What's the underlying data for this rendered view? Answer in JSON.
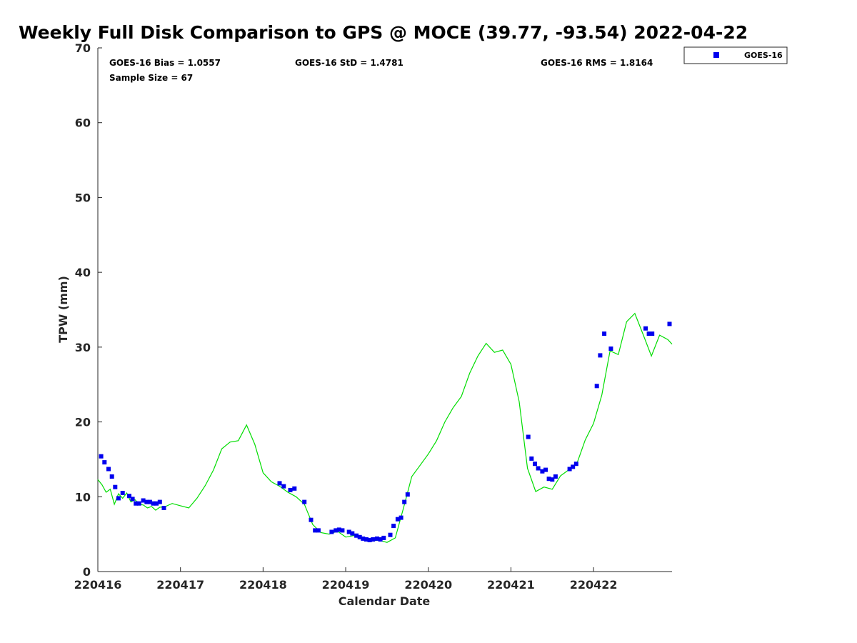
{
  "chart_data": {
    "type": "scatter",
    "title": "Weekly Full Disk Comparison to GPS @ MOCE (39.77, -93.54) 2022-04-22",
    "xlabel": "Calendar Date",
    "ylabel": "TPW (mm)",
    "xlim": [
      0,
      6.95
    ],
    "ylim": [
      0,
      70
    ],
    "x_ticks": [
      0,
      1,
      2,
      3,
      4,
      5,
      6
    ],
    "x_tick_labels": [
      "220416",
      "220417",
      "220418",
      "220419",
      "220420",
      "220421",
      "220422"
    ],
    "y_ticks": [
      0,
      10,
      20,
      30,
      40,
      50,
      60,
      70
    ],
    "y_tick_labels": [
      "0",
      "10",
      "20",
      "30",
      "40",
      "50",
      "60",
      "70"
    ],
    "stats": {
      "bias": "GOES-16 Bias = 1.0557",
      "std": "GOES-16 StD = 1.4781",
      "rms": "GOES-16 RMS = 1.8164",
      "sample_size": "Sample Size = 67"
    },
    "legend": {
      "label": "GOES-16",
      "position": "top-right outside"
    },
    "colors": {
      "goes": "#0000ee",
      "gps": "#00dd00"
    },
    "series": [
      {
        "name": "GOES-16",
        "style": "square-markers",
        "x": [
          0.04,
          0.08,
          0.13,
          0.17,
          0.21,
          0.25,
          0.3,
          0.38,
          0.42,
          0.46,
          0.5,
          0.55,
          0.59,
          0.63,
          0.67,
          0.71,
          0.75,
          0.8,
          2.2,
          2.25,
          2.33,
          2.38,
          2.5,
          2.58,
          2.63,
          2.67,
          2.83,
          2.88,
          2.92,
          2.96,
          3.04,
          3.08,
          3.13,
          3.17,
          3.21,
          3.25,
          3.29,
          3.33,
          3.38,
          3.42,
          3.46,
          3.54,
          3.58,
          3.63,
          3.67,
          3.71,
          3.75,
          5.21,
          5.25,
          5.29,
          5.33,
          5.38,
          5.42,
          5.46,
          5.5,
          5.54,
          5.71,
          5.75,
          5.79,
          6.04,
          6.08,
          6.13,
          6.21,
          6.63,
          6.67,
          6.71,
          6.92
        ],
        "y": [
          15.4,
          14.6,
          13.7,
          12.7,
          11.3,
          9.8,
          10.5,
          10.1,
          9.7,
          9.1,
          9.1,
          9.5,
          9.3,
          9.3,
          9.1,
          9.1,
          9.3,
          8.5,
          11.8,
          11.4,
          10.9,
          11.1,
          9.3,
          6.9,
          5.5,
          5.5,
          5.3,
          5.5,
          5.6,
          5.5,
          5.3,
          5.1,
          4.8,
          4.6,
          4.4,
          4.3,
          4.2,
          4.3,
          4.4,
          4.3,
          4.5,
          4.9,
          6.1,
          7.0,
          7.2,
          9.3,
          10.3,
          18.0,
          15.1,
          14.4,
          13.8,
          13.4,
          13.6,
          12.4,
          12.3,
          12.7,
          13.7,
          14.0,
          14.4,
          24.8,
          28.9,
          31.8,
          29.8,
          32.5,
          31.8,
          31.8,
          33.1
        ]
      },
      {
        "name": "GPS",
        "style": "line",
        "x": [
          0.0,
          0.05,
          0.1,
          0.15,
          0.2,
          0.25,
          0.3,
          0.35,
          0.4,
          0.45,
          0.5,
          0.55,
          0.6,
          0.65,
          0.7,
          0.75,
          0.8,
          0.9,
          1.0,
          1.1,
          1.2,
          1.3,
          1.4,
          1.5,
          1.6,
          1.7,
          1.8,
          1.9,
          2.0,
          2.1,
          2.2,
          2.3,
          2.4,
          2.5,
          2.6,
          2.7,
          2.8,
          2.9,
          3.0,
          3.1,
          3.2,
          3.3,
          3.4,
          3.5,
          3.6,
          3.7,
          3.8,
          3.9,
          4.0,
          4.1,
          4.2,
          4.3,
          4.4,
          4.5,
          4.6,
          4.7,
          4.8,
          4.9,
          5.0,
          5.1,
          5.2,
          5.3,
          5.4,
          5.5,
          5.6,
          5.7,
          5.8,
          5.9,
          6.0,
          6.1,
          6.2,
          6.3,
          6.4,
          6.5,
          6.6,
          6.7,
          6.8,
          6.9,
          6.95
        ],
        "y": [
          12.3,
          11.6,
          10.6,
          11.0,
          9.0,
          10.4,
          9.8,
          10.5,
          9.3,
          9.6,
          9.0,
          8.9,
          8.5,
          8.7,
          8.2,
          8.6,
          8.6,
          9.1,
          8.8,
          8.5,
          9.8,
          11.5,
          13.6,
          16.4,
          17.3,
          17.5,
          19.6,
          17.0,
          13.2,
          12.0,
          11.4,
          10.6,
          10.0,
          9.0,
          6.3,
          5.2,
          5.0,
          5.4,
          4.6,
          4.8,
          4.4,
          4.1,
          4.2,
          3.9,
          4.5,
          8.5,
          12.7,
          14.2,
          15.7,
          17.5,
          20.0,
          21.9,
          23.4,
          26.5,
          28.8,
          30.5,
          29.3,
          29.6,
          27.7,
          22.7,
          13.8,
          10.7,
          11.3,
          11.0,
          12.8,
          13.6,
          14.5,
          17.6,
          19.8,
          23.6,
          29.5,
          29.0,
          33.4,
          34.5,
          31.7,
          28.8,
          31.6,
          31.0,
          30.4
        ]
      }
    ]
  }
}
